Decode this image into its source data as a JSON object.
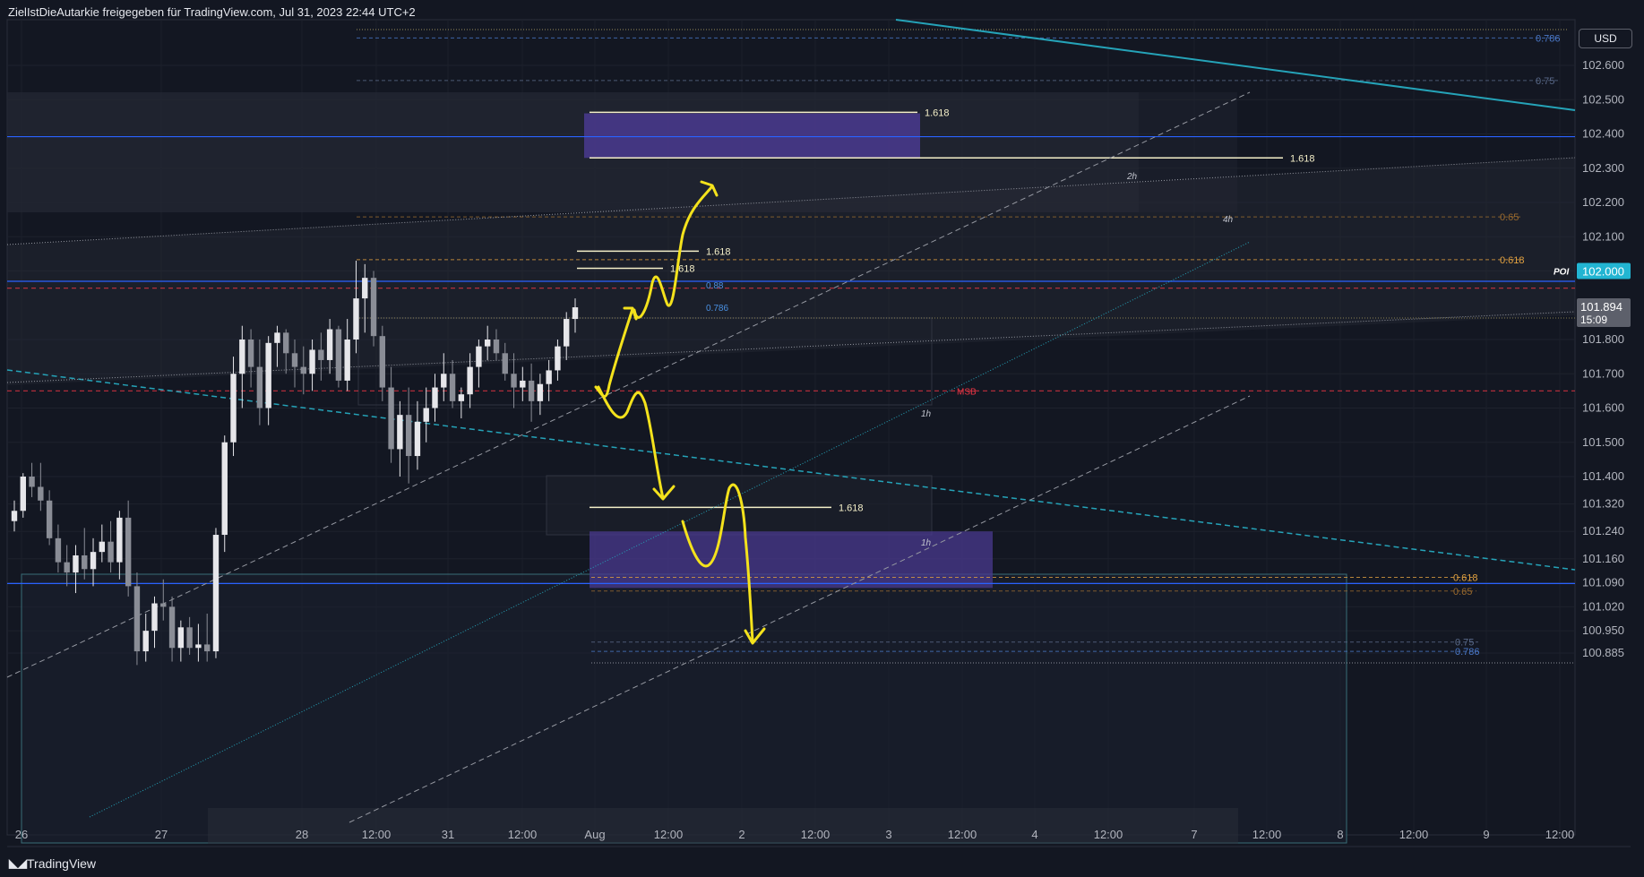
{
  "header": {
    "text": "ZielIstDieAutarkie freigegeben für TradingView.com, Jul 31, 2023 22:44 UTC+2"
  },
  "currency_button": "USD",
  "brand": "TradingView",
  "colors": {
    "background": "#131722",
    "bull": "#e6e6ea",
    "bear": "#8a8d96",
    "annotation": "#f4e21c",
    "zone": "#4a3a8f",
    "blue_line": "#2962ff",
    "msb": "#f23645",
    "teal": "#25a3b8"
  },
  "price_badge": {
    "price": "101.894",
    "countdown": "15:09"
  },
  "poi_badge": {
    "label": "POI",
    "price": "102.000"
  },
  "chart_data": {
    "type": "candlestick",
    "title": "",
    "xlabel": "",
    "ylabel": "",
    "ylim": [
      100.85,
      102.68
    ],
    "y_ticks": [
      "102.600",
      "102.500",
      "102.400",
      "102.300",
      "102.200",
      "102.100",
      "102.000",
      "101.894",
      "101.800",
      "101.700",
      "101.600",
      "101.500",
      "101.400",
      "101.320",
      "101.240",
      "101.160",
      "101.090",
      "101.020",
      "100.950",
      "100.885"
    ],
    "x_ticks": [
      "26",
      "27",
      "28",
      "12:00",
      "31",
      "12:00",
      "Aug",
      "12:00",
      "2",
      "12:00",
      "3",
      "12:00",
      "4",
      "12:00",
      "7",
      "12:00",
      "8",
      "12:00",
      "9",
      "12:00"
    ],
    "horizontal_levels": [
      {
        "price": 102.392,
        "label": "",
        "style": "solid",
        "color": "#2962ff"
      },
      {
        "price": 101.088,
        "label": "",
        "style": "solid",
        "color": "#2962ff"
      },
      {
        "price": 101.65,
        "label": "MSB",
        "style": "dashed",
        "color": "#f23645"
      },
      {
        "price": 101.95,
        "label": "",
        "style": "dashed",
        "color": "#f23645"
      },
      {
        "price": 101.97,
        "label": "",
        "style": "solid",
        "color": "#2962ff"
      }
    ],
    "fib_labels": [
      {
        "price": 102.68,
        "label": "0.786",
        "color": "#4a78c8"
      },
      {
        "price": 102.556,
        "label": "0.75",
        "color": "#5a6a8a"
      },
      {
        "price": 102.158,
        "label": "0.65",
        "color": "#9a6a2e"
      },
      {
        "price": 102.033,
        "label": "0.618",
        "color": "#e0a040"
      },
      {
        "price": 101.106,
        "label": "0.618",
        "color": "#e0a040"
      },
      {
        "price": 101.066,
        "label": "0.65",
        "color": "#9a6a2e"
      },
      {
        "price": 100.917,
        "label": "0.75",
        "color": "#5a6a8a"
      },
      {
        "price": 100.89,
        "label": "0.786",
        "color": "#4a78c8"
      }
    ],
    "extension_labels": [
      {
        "price": 102.463,
        "label": "1.618"
      },
      {
        "price": 102.33,
        "label": "1.618"
      },
      {
        "price": 102.058,
        "label": "1.618"
      },
      {
        "price": 102.008,
        "label": "1.618"
      },
      {
        "price": 101.31,
        "label": "1.618"
      }
    ],
    "small_fib_labels": [
      {
        "price": 101.96,
        "label": "0.88"
      },
      {
        "price": 101.894,
        "label": "0.786"
      }
    ],
    "timeframe_labels": [
      "2h",
      "4h",
      "1h",
      "1h"
    ],
    "zones": [
      {
        "label": "upper-target",
        "price_top": 102.46,
        "price_bottom": 102.33
      },
      {
        "label": "lower-target",
        "price_top": 101.24,
        "price_bottom": 101.075
      }
    ],
    "candles": [
      [
        101.27,
        101.33,
        101.24,
        101.3
      ],
      [
        101.3,
        101.41,
        101.28,
        101.4
      ],
      [
        101.4,
        101.44,
        101.34,
        101.37
      ],
      [
        101.37,
        101.44,
        101.3,
        101.33
      ],
      [
        101.33,
        101.36,
        101.2,
        101.22
      ],
      [
        101.22,
        101.26,
        101.12,
        101.15
      ],
      [
        101.15,
        101.2,
        101.08,
        101.12
      ],
      [
        101.12,
        101.2,
        101.06,
        101.17
      ],
      [
        101.17,
        101.25,
        101.1,
        101.13
      ],
      [
        101.13,
        101.22,
        101.08,
        101.18
      ],
      [
        101.18,
        101.26,
        101.15,
        101.21
      ],
      [
        101.21,
        101.27,
        101.12,
        101.15
      ],
      [
        101.15,
        101.3,
        101.1,
        101.28
      ],
      [
        101.28,
        101.33,
        101.05,
        101.08
      ],
      [
        101.08,
        101.12,
        100.85,
        100.89
      ],
      [
        100.89,
        101.0,
        100.86,
        100.95
      ],
      [
        100.95,
        101.05,
        100.9,
        101.03
      ],
      [
        101.03,
        101.1,
        100.98,
        101.02
      ],
      [
        101.02,
        101.05,
        100.86,
        100.9
      ],
      [
        100.9,
        100.98,
        100.86,
        100.96
      ],
      [
        100.96,
        100.99,
        100.88,
        100.9
      ],
      [
        100.9,
        100.97,
        100.86,
        100.91
      ],
      [
        100.91,
        101.0,
        100.86,
        100.89
      ],
      [
        100.89,
        101.25,
        100.87,
        101.23
      ],
      [
        101.23,
        101.52,
        101.18,
        101.5
      ],
      [
        101.5,
        101.75,
        101.46,
        101.7
      ],
      [
        101.7,
        101.84,
        101.6,
        101.8
      ],
      [
        101.8,
        101.83,
        101.66,
        101.72
      ],
      [
        101.72,
        101.8,
        101.55,
        101.6
      ],
      [
        101.6,
        101.81,
        101.55,
        101.79
      ],
      [
        101.79,
        101.84,
        101.72,
        101.82
      ],
      [
        101.82,
        101.83,
        101.7,
        101.76
      ],
      [
        101.76,
        101.8,
        101.66,
        101.72
      ],
      [
        101.72,
        101.78,
        101.64,
        101.7
      ],
      [
        101.7,
        101.8,
        101.65,
        101.77
      ],
      [
        101.77,
        101.82,
        101.68,
        101.74
      ],
      [
        101.74,
        101.86,
        101.7,
        101.83
      ],
      [
        101.83,
        101.84,
        101.66,
        101.68
      ],
      [
        101.68,
        101.86,
        101.65,
        101.8
      ],
      [
        101.8,
        102.03,
        101.76,
        101.92
      ],
      [
        101.92,
        102.02,
        101.82,
        101.98
      ],
      [
        101.98,
        102.0,
        101.78,
        101.81
      ],
      [
        101.81,
        101.84,
        101.62,
        101.66
      ],
      [
        101.66,
        101.72,
        101.44,
        101.48
      ],
      [
        101.48,
        101.62,
        101.4,
        101.58
      ],
      [
        101.58,
        101.66,
        101.38,
        101.46
      ],
      [
        101.46,
        101.62,
        101.42,
        101.56
      ],
      [
        101.56,
        101.66,
        101.5,
        101.6
      ],
      [
        101.6,
        101.7,
        101.56,
        101.66
      ],
      [
        101.66,
        101.76,
        101.62,
        101.7
      ],
      [
        101.7,
        101.74,
        101.6,
        101.62
      ],
      [
        101.62,
        101.66,
        101.57,
        101.64
      ],
      [
        101.64,
        101.76,
        101.6,
        101.72
      ],
      [
        101.72,
        101.8,
        101.66,
        101.78
      ],
      [
        101.78,
        101.84,
        101.74,
        101.8
      ],
      [
        101.8,
        101.83,
        101.74,
        101.76
      ],
      [
        101.76,
        101.79,
        101.68,
        101.7
      ],
      [
        101.7,
        101.76,
        101.6,
        101.66
      ],
      [
        101.66,
        101.72,
        101.62,
        101.68
      ],
      [
        101.68,
        101.73,
        101.56,
        101.62
      ],
      [
        101.62,
        101.7,
        101.58,
        101.67
      ],
      [
        101.67,
        101.74,
        101.62,
        101.71
      ],
      [
        101.71,
        101.8,
        101.68,
        101.78
      ],
      [
        101.78,
        101.88,
        101.74,
        101.86
      ],
      [
        101.86,
        101.92,
        101.82,
        101.894
      ]
    ]
  }
}
